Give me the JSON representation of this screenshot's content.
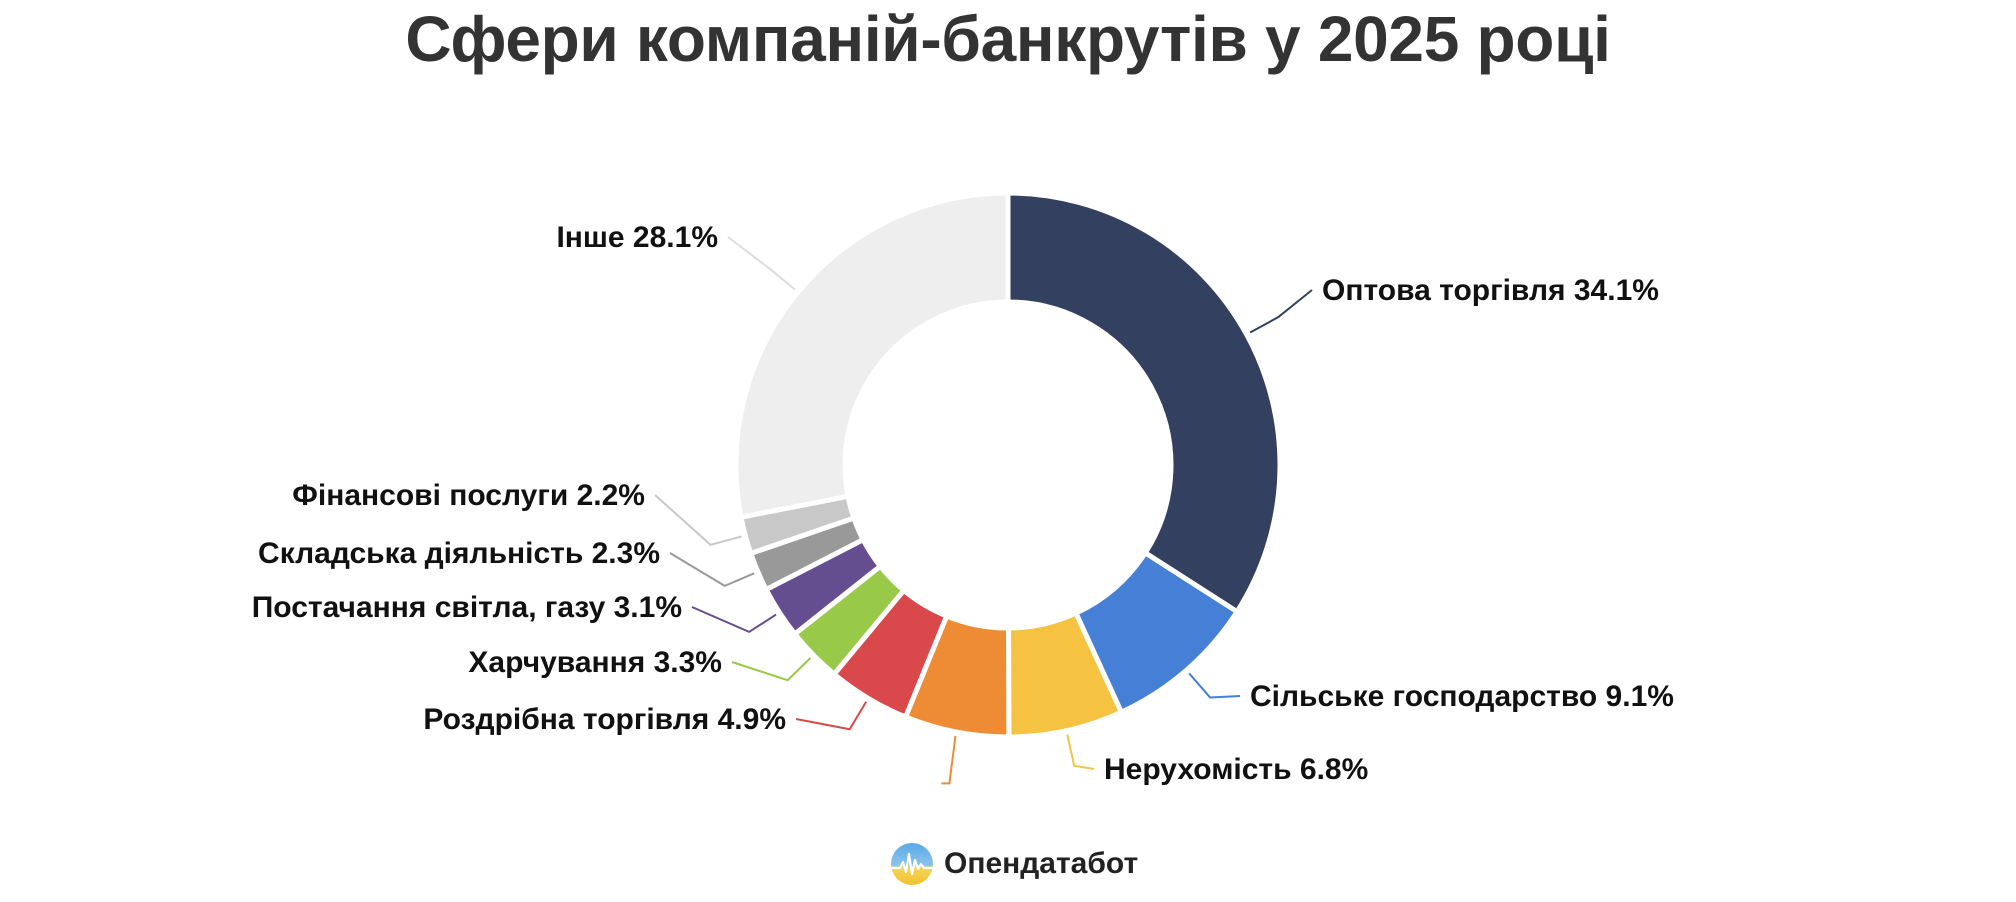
{
  "chart_data": {
    "type": "pie",
    "title": "Сфери компаній-банкрутів у 2025 році",
    "donut": true,
    "labels_with_values": true,
    "slices": [
      {
        "label": "Оптова торгівля",
        "value": 34.1,
        "display": "Оптова торгівля 34.1%",
        "color": "#334060"
      },
      {
        "label": "Сільське господарство",
        "value": 9.1,
        "display": "Сільське господарство 9.1%",
        "color": "#4580D6"
      },
      {
        "label": "Нерухомість",
        "value": 6.8,
        "display": "Нерухомість 6.8%",
        "color": "#F5C242"
      },
      {
        "label": "",
        "value": 6.2,
        "display": "",
        "color": "#EE8C35"
      },
      {
        "label": "Роздрібна торгівля",
        "value": 4.9,
        "display": "Роздрібна торгівля 4.9%",
        "color": "#D9484B"
      },
      {
        "label": "Харчування",
        "value": 3.3,
        "display": "Харчування 3.3%",
        "color": "#98C948"
      },
      {
        "label": "Постачання світла, газу",
        "value": 3.1,
        "display": "Постачання світла, газу 3.1%",
        "color": "#654E90"
      },
      {
        "label": "Складська діяльність",
        "value": 2.3,
        "display": "Складська діяльність 2.3%",
        "color": "#999999"
      },
      {
        "label": "Фінансові послуги",
        "value": 2.2,
        "display": "Фінансові послуги 2.2%",
        "color": "#C8C8C8"
      },
      {
        "label": "Інше",
        "value": 28.1,
        "display": "Інше 28.1%",
        "color": "#EEEEEE"
      }
    ]
  },
  "brand": {
    "name": "Опендатабот",
    "icon": "opendatabot-logo-icon"
  }
}
